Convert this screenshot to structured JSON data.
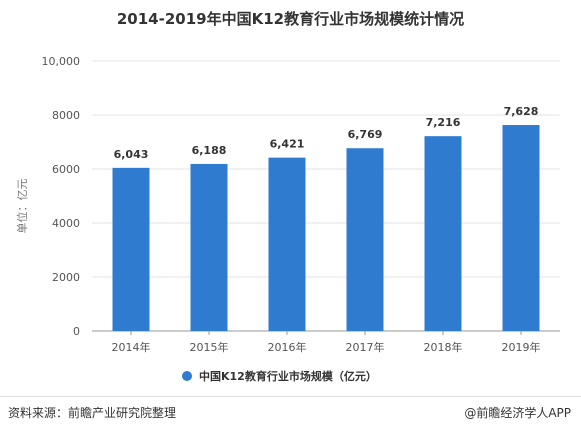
{
  "title": "2014-2019年中国K12教育行业市场规模统计情况",
  "footer": {
    "source": "资料来源：前瞻产业研究院整理",
    "credit": "@前瞻经济学人APP"
  },
  "colors": {
    "bar": "#2e7bcf",
    "grid": "#e3e3e3",
    "axis": "#999999"
  },
  "chart_data": {
    "type": "bar",
    "categories": [
      "2014年",
      "2015年",
      "2016年",
      "2017年",
      "2018年",
      "2019年"
    ],
    "series": [
      {
        "name": "中国K12教育行业市场规模（亿元）",
        "values": [
          6043,
          6188,
          6421,
          6769,
          7216,
          7628
        ]
      }
    ],
    "data_labels": [
      "6,043",
      "6,188",
      "6,421",
      "6,769",
      "7,216",
      "7,628"
    ],
    "ylabel": "单位：亿元",
    "ylim": [
      0,
      10000
    ],
    "yticks": [
      0,
      2000,
      4000,
      6000,
      8000,
      10000
    ],
    "ytick_labels": [
      "0",
      "2000",
      "4000",
      "6000",
      "8000",
      "10,000"
    ],
    "grid": true,
    "legend": "bottom-center"
  }
}
